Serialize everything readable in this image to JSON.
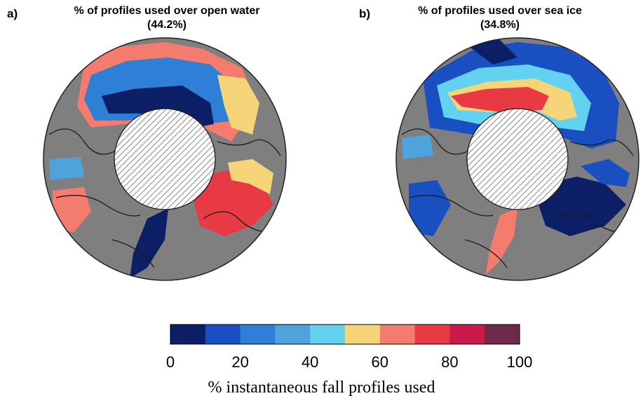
{
  "panels": [
    {
      "label": "a)",
      "title_line1": "% of profiles used over open water",
      "title_line2": "(44.2%)"
    },
    {
      "label": "b)",
      "title_line1": "% of profiles used over sea ice",
      "title_line2": "(34.8%)"
    }
  ],
  "colorbar": {
    "colors": [
      "#0b1e66",
      "#1a4fc2",
      "#2e7fd6",
      "#4ea3dc",
      "#62d2f0",
      "#f6d57a",
      "#f47c6e",
      "#e83a45",
      "#c81b4a",
      "#6e2a4a"
    ],
    "ticks": [
      "0",
      "20",
      "40",
      "60",
      "80",
      "100"
    ],
    "label": "% instantaneous fall profiles used"
  },
  "colors": {
    "land": "#7f7f7f",
    "coast": "#1a1a1a",
    "pole_hatch": "#666666"
  }
}
